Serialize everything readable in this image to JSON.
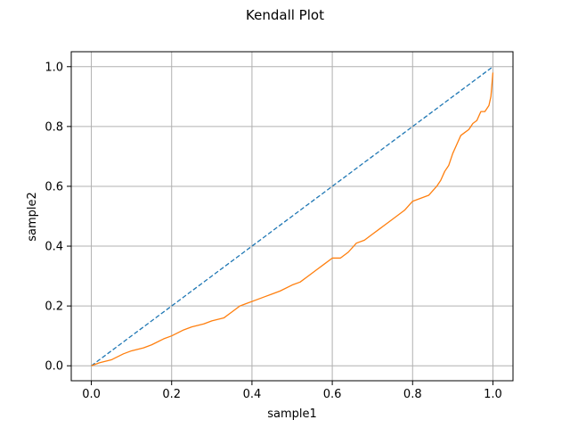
{
  "chart_data": {
    "type": "line",
    "title": "Kendall Plot",
    "xlabel": "sample1",
    "ylabel": "sample2",
    "xlim": [
      -0.05,
      1.05
    ],
    "ylim": [
      -0.05,
      1.05
    ],
    "xticks": [
      "0.0",
      "0.2",
      "0.4",
      "0.6",
      "0.8",
      "1.0"
    ],
    "yticks": [
      "0.0",
      "0.2",
      "0.4",
      "0.6",
      "0.8",
      "1.0"
    ],
    "xtick_values": [
      0,
      0.2,
      0.4,
      0.6,
      0.8,
      1.0
    ],
    "ytick_values": [
      0,
      0.2,
      0.4,
      0.6,
      0.8,
      1.0
    ],
    "grid": true,
    "colors": {
      "reference": "#1f77b4",
      "kendall": "#ff7f0e",
      "grid": "#b0b0b0"
    },
    "series": [
      {
        "style": "dashed",
        "x": [
          0,
          1
        ],
        "y": [
          0,
          1
        ]
      },
      {
        "style": "solid",
        "x": [
          0,
          0.02,
          0.05,
          0.08,
          0.1,
          0.13,
          0.15,
          0.18,
          0.2,
          0.23,
          0.25,
          0.28,
          0.3,
          0.33,
          0.35,
          0.37,
          0.39,
          0.41,
          0.43,
          0.45,
          0.47,
          0.5,
          0.52,
          0.54,
          0.56,
          0.58,
          0.6,
          0.62,
          0.64,
          0.66,
          0.68,
          0.7,
          0.72,
          0.74,
          0.76,
          0.78,
          0.8,
          0.82,
          0.84,
          0.86,
          0.87,
          0.88,
          0.89,
          0.9,
          0.91,
          0.92,
          0.93,
          0.94,
          0.95,
          0.96,
          0.97,
          0.98,
          0.99,
          0.995,
          1.0
        ],
        "y": [
          0,
          0.01,
          0.02,
          0.04,
          0.05,
          0.06,
          0.07,
          0.09,
          0.1,
          0.12,
          0.13,
          0.14,
          0.15,
          0.16,
          0.18,
          0.2,
          0.21,
          0.22,
          0.23,
          0.24,
          0.25,
          0.27,
          0.28,
          0.3,
          0.32,
          0.34,
          0.36,
          0.36,
          0.38,
          0.41,
          0.42,
          0.44,
          0.46,
          0.48,
          0.5,
          0.52,
          0.55,
          0.56,
          0.57,
          0.6,
          0.62,
          0.65,
          0.67,
          0.71,
          0.74,
          0.77,
          0.78,
          0.79,
          0.81,
          0.82,
          0.85,
          0.85,
          0.87,
          0.9,
          0.98
        ]
      }
    ]
  }
}
